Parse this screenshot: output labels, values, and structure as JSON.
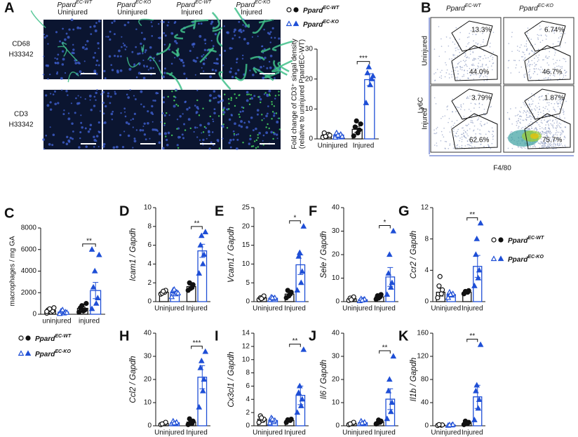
{
  "panelA": {
    "letter": "A",
    "columns": [
      {
        "name": "Ppard",
        "sup": "EC-WT",
        "state": "Uninjured"
      },
      {
        "name": "Ppard",
        "sup": "EC-KO",
        "state": "Uninjured"
      },
      {
        "name": "Ppard",
        "sup": "EC-WT",
        "state": "Injured"
      },
      {
        "name": "Ppard",
        "sup": "EC-KO",
        "state": "Injured"
      }
    ],
    "rows": [
      {
        "stain": "CD68",
        "nuclei": "H33342"
      },
      {
        "stain": "CD3",
        "nuclei": "H33342"
      }
    ]
  },
  "panelB": {
    "letter": "B",
    "columns": [
      {
        "name": "Ppard",
        "sup": "EC-WT"
      },
      {
        "name": "Ppard",
        "sup": "EC-KO"
      }
    ],
    "rows": [
      "Uninjured",
      "Injured"
    ],
    "gates": [
      [
        "13.3%",
        "44.0%"
      ],
      [
        "6.74%",
        "46.7%"
      ],
      [
        "3.79%",
        "62.6%"
      ],
      [
        "1.87%",
        "75.7%"
      ]
    ],
    "ylabel": "Ly6C",
    "xlabel": "F4/80"
  },
  "chart_data": [
    {
      "type": "bar",
      "ylabel": "Fold change of CD3⁺ singal density",
      "ylabel_note": "(relative to uninjured PpardEC-WT)",
      "categories": [
        "Uninjured",
        "Injured"
      ],
      "ylim": [
        0,
        30
      ],
      "yticks": [
        0,
        10,
        20,
        30
      ],
      "sig": "***",
      "legend": "top",
      "series": [
        {
          "name": "Ppard",
          "sup": "EC-WT",
          "color": "#111111",
          "values": [
            1.2,
            3.2
          ],
          "errors": [
            0.3,
            1
          ],
          "points": [
            [
              0.5,
              1,
              1.5,
              2,
              0.8,
              1.2
            ],
            [
              1,
              2,
              3,
              4,
              6,
              5
            ]
          ]
        },
        {
          "name": "Ppard",
          "sup": "EC-KO",
          "color": "#1f4fd6",
          "values": [
            1.3,
            19.8
          ],
          "errors": [
            0.3,
            2
          ],
          "points": [
            [
              0.5,
              1,
              1.5,
              2,
              1.2,
              0.8
            ],
            [
              12,
              18,
              20,
              22,
              24,
              21
            ]
          ]
        }
      ]
    },
    {
      "type": "bar",
      "letter": "C",
      "ylabel": "macrophages / mg GA",
      "categories": [
        "uninjured",
        "injured"
      ],
      "ylim": [
        0,
        8000
      ],
      "yticks": [
        0,
        2000,
        4000,
        6000,
        8000
      ],
      "sig": "**",
      "legend": "bottom",
      "series": [
        {
          "name": "Ppard",
          "sup": "EC-WT",
          "color": "#111111",
          "values": [
            340,
            550
          ],
          "errors": [
            70,
            130
          ],
          "points": [
            [
              100,
              200,
              300,
              400,
              500,
              600,
              250
            ],
            [
              200,
              300,
              400,
              600,
              800,
              1000
            ]
          ]
        },
        {
          "name": "Ppard",
          "sup": "EC-KO",
          "color": "#1f4fd6",
          "values": [
            200,
            2200
          ],
          "errors": [
            50,
            750
          ],
          "points": [
            [
              50,
              100,
              200,
              300,
              400,
              150
            ],
            [
              500,
              1000,
              1500,
              2500,
              4000,
              5500,
              6000
            ]
          ]
        }
      ]
    },
    {
      "type": "bar",
      "letter": "D",
      "ylabel": "Icam1 / Gapdh",
      "categories": [
        "Uninjured",
        "Injured"
      ],
      "ylim": [
        0,
        10
      ],
      "yticks": [
        0,
        2,
        4,
        6,
        8,
        10
      ],
      "sig": "**",
      "series": [
        {
          "color": "#111111",
          "values": [
            1,
            1.6
          ],
          "errors": [
            0.1,
            0.15
          ],
          "points": [
            [
              0.8,
              1,
              1.2,
              0.9,
              1.1
            ],
            [
              1.2,
              1.5,
              1.8,
              2,
              1.4
            ]
          ]
        },
        {
          "color": "#1f4fd6",
          "values": [
            0.95,
            5.4
          ],
          "errors": [
            0.12,
            0.7
          ],
          "points": [
            [
              0.5,
              0.8,
              1,
              1.2,
              1.3,
              0.9
            ],
            [
              3,
              4,
              5,
              6,
              7,
              7.4
            ]
          ]
        }
      ]
    },
    {
      "type": "bar",
      "letter": "E",
      "ylabel": "Vcam1 / Gapdh",
      "categories": [
        "Uninjured",
        "Injured"
      ],
      "ylim": [
        0,
        25
      ],
      "yticks": [
        0,
        5,
        10,
        15,
        20,
        25
      ],
      "sig": "*",
      "series": [
        {
          "color": "#111111",
          "values": [
            1,
            2
          ],
          "errors": [
            0.2,
            0.4
          ],
          "points": [
            [
              0.5,
              1,
              1.5,
              1,
              0.8
            ],
            [
              1,
              2,
              2.5,
              3,
              1.5
            ]
          ]
        },
        {
          "color": "#1f4fd6",
          "values": [
            0.9,
            9.8
          ],
          "errors": [
            0.15,
            2.6
          ],
          "points": [
            [
              0.5,
              0.8,
              1,
              1.2,
              1
            ],
            [
              3,
              5,
              8,
              12,
              13,
              20
            ]
          ]
        }
      ]
    },
    {
      "type": "bar",
      "letter": "F",
      "ylabel": "Sele / Gapdh",
      "categories": [
        "Uninjured",
        "Injured"
      ],
      "ylim": [
        0,
        40
      ],
      "yticks": [
        0,
        10,
        20,
        30,
        40
      ],
      "sig": "*",
      "series": [
        {
          "color": "#111111",
          "values": [
            1.2,
            2
          ],
          "errors": [
            0.3,
            0.4
          ],
          "points": [
            [
              0.5,
              1,
              2,
              1.5,
              0.8
            ],
            [
              1,
              2,
              3,
              2.5,
              1.5
            ]
          ]
        },
        {
          "color": "#1f4fd6",
          "values": [
            0.8,
            10.5
          ],
          "errors": [
            0.2,
            4
          ],
          "points": [
            [
              0.3,
              0.8,
              1,
              1.2,
              0.6
            ],
            [
              3,
              6,
              8,
              12,
              20,
              30
            ]
          ]
        }
      ]
    },
    {
      "type": "bar",
      "letter": "G",
      "ylabel": "Ccr2 / Gapdh",
      "categories": [
        "Uninjured",
        "Injured"
      ],
      "ylim": [
        0,
        12
      ],
      "yticks": [
        0,
        4,
        8,
        12
      ],
      "sig": "**",
      "legend": "right",
      "series": [
        {
          "name": "Ppard",
          "sup": "EC-WT",
          "color": "#111111",
          "values": [
            1.2,
            1.2
          ],
          "errors": [
            0.5,
            0.1
          ],
          "points": [
            [
              0.5,
              1,
              1.5,
              2,
              3.2
            ],
            [
              1,
              1.2,
              1.4,
              1.3
            ]
          ]
        },
        {
          "name": "Ppard",
          "sup": "EC-KO",
          "color": "#1f4fd6",
          "values": [
            0.9,
            4.5
          ],
          "errors": [
            0.15,
            1.4
          ],
          "points": [
            [
              0.5,
              0.8,
              1,
              1.2,
              0.9
            ],
            [
              2,
              3,
              4,
              6,
              8,
              10
            ]
          ]
        }
      ]
    },
    {
      "type": "bar",
      "letter": "H",
      "ylabel": "Ccl2 / Gapdh",
      "categories": [
        "Uninjured",
        "Injured"
      ],
      "ylim": [
        0,
        40
      ],
      "yticks": [
        0,
        10,
        20,
        30,
        40
      ],
      "sig": "***",
      "series": [
        {
          "color": "#111111",
          "values": [
            1,
            1.6
          ],
          "errors": [
            0.2,
            0.4
          ],
          "points": [
            [
              0.5,
              1,
              1.5,
              0.8
            ],
            [
              0.5,
              1,
              2,
              3,
              1.5
            ]
          ]
        },
        {
          "color": "#1f4fd6",
          "values": [
            1.3,
            21
          ],
          "errors": [
            0.2,
            5
          ],
          "points": [
            [
              0.8,
              1,
              1.5,
              2,
              1.2
            ],
            [
              8,
              15,
              20,
              25,
              28,
              32
            ]
          ]
        }
      ]
    },
    {
      "type": "bar",
      "letter": "I",
      "ylabel": "Cx3cl1 / Gapdh",
      "categories": [
        "Uninjured",
        "Injured"
      ],
      "ylim": [
        0,
        14
      ],
      "yticks": [
        0,
        2,
        4,
        6,
        8,
        10,
        12,
        14
      ],
      "sig": "**",
      "series": [
        {
          "color": "#111111",
          "values": [
            1,
            0.8
          ],
          "errors": [
            0.2,
            0.1
          ],
          "points": [
            [
              0.5,
              0.8,
              1,
              1.5,
              1.2
            ],
            [
              0.5,
              0.8,
              1,
              0.9
            ]
          ]
        },
        {
          "color": "#1f4fd6",
          "values": [
            0.8,
            4.6
          ],
          "errors": [
            0.15,
            1.4
          ],
          "points": [
            [
              0.4,
              0.6,
              0.8,
              1.2,
              1
            ],
            [
              2,
              3,
              4,
              5,
              6,
              11.5
            ]
          ]
        }
      ]
    },
    {
      "type": "bar",
      "letter": "J",
      "ylabel": "Il6 / Gapdh",
      "categories": [
        "Uninjured",
        "Injured"
      ],
      "ylim": [
        0,
        40
      ],
      "yticks": [
        0,
        10,
        20,
        30,
        40
      ],
      "sig": "**",
      "series": [
        {
          "color": "#111111",
          "values": [
            1,
            1.6
          ],
          "errors": [
            0.2,
            0.3
          ],
          "points": [
            [
              0.5,
              1,
              1.5,
              0.8
            ],
            [
              0.8,
              1.5,
              2,
              1.2,
              2.5
            ]
          ]
        },
        {
          "color": "#1f4fd6",
          "values": [
            1.3,
            11.5
          ],
          "errors": [
            0.2,
            4.5
          ],
          "points": [
            [
              0.8,
              1,
              1.5,
              2,
              1.2
            ],
            [
              3,
              6,
              10,
              15,
              20,
              30
            ]
          ]
        }
      ]
    },
    {
      "type": "bar",
      "letter": "K",
      "ylabel": "Il1b / Gapdh",
      "categories": [
        "Uninjured",
        "Injured"
      ],
      "ylim": [
        0,
        160
      ],
      "yticks": [
        0,
        40,
        80,
        120,
        160
      ],
      "sig": "**",
      "series": [
        {
          "color": "#111111",
          "values": [
            1.2,
            5
          ],
          "errors": [
            0.4,
            1.5
          ],
          "points": [
            [
              0.5,
              1,
              1.5,
              2
            ],
            [
              2,
              4,
              6,
              8,
              5
            ]
          ]
        },
        {
          "color": "#1f4fd6",
          "values": [
            1.2,
            50
          ],
          "errors": [
            0.4,
            20
          ],
          "points": [
            [
              0.5,
              1,
              2,
              1.5
            ],
            [
              10,
              30,
              45,
              60,
              70,
              140
            ]
          ]
        }
      ]
    }
  ]
}
